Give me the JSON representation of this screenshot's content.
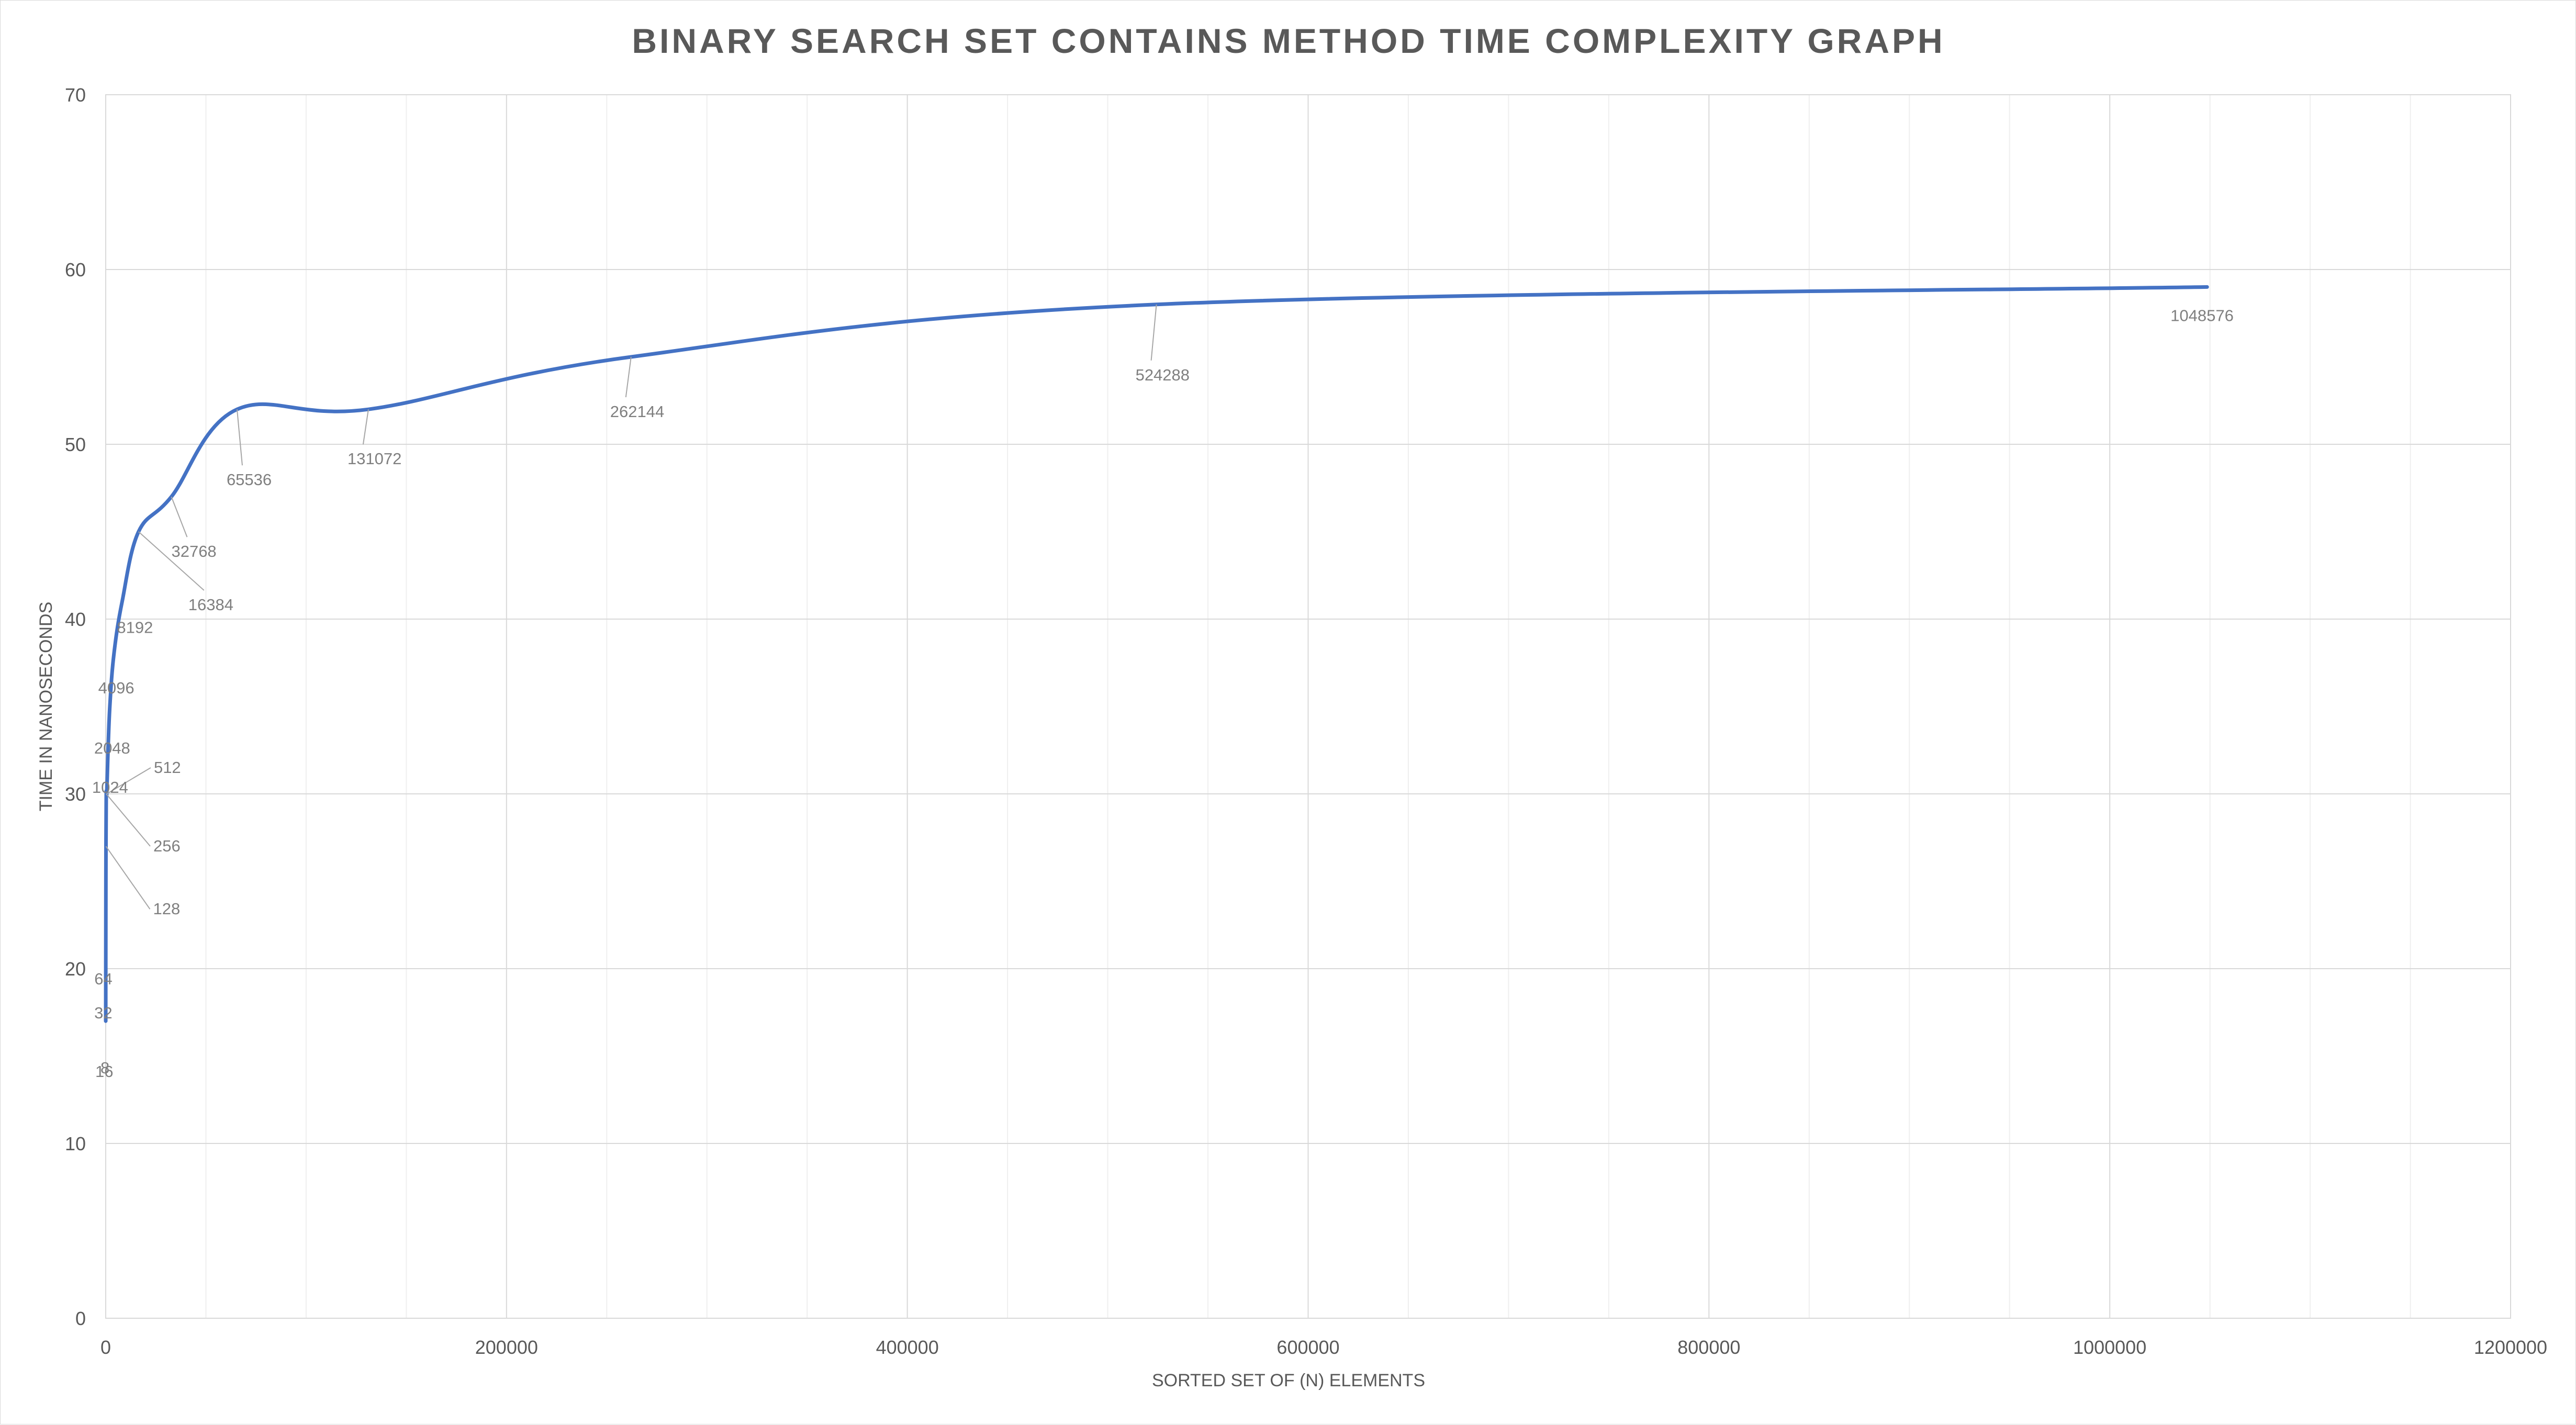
{
  "chart_data": {
    "type": "line",
    "title": "BINARY SEARCH SET CONTAINS METHOD TIME COMPLEXITY GRAPH",
    "xlabel": "SORTED SET OF (N) ELEMENTS",
    "ylabel": "TIME IN NANOSECONDS",
    "xlim": [
      0,
      1200000
    ],
    "ylim": [
      0,
      70
    ],
    "x_ticks": [
      "0",
      "200000",
      "400000",
      "600000",
      "800000",
      "1000000",
      "1200000"
    ],
    "y_ticks": [
      "0",
      "10",
      "20",
      "30",
      "40",
      "50",
      "60",
      "70"
    ],
    "grid": true,
    "smooth": true,
    "series": [
      {
        "color": "#4472c4",
        "points": [
          {
            "x": 8,
            "y": 17,
            "label": "8"
          },
          {
            "x": 16,
            "y": 18,
            "label": "16"
          },
          {
            "x": 32,
            "y": 20,
            "label": "32"
          },
          {
            "x": 64,
            "y": 23,
            "label": "64"
          },
          {
            "x": 128,
            "y": 27,
            "label": "128"
          },
          {
            "x": 256,
            "y": 30,
            "label": "256"
          },
          {
            "x": 512,
            "y": 30,
            "label": "512"
          },
          {
            "x": 1024,
            "y": 32,
            "label": "1024"
          },
          {
            "x": 2048,
            "y": 35,
            "label": "2048"
          },
          {
            "x": 4096,
            "y": 38,
            "label": "4096"
          },
          {
            "x": 8192,
            "y": 41,
            "label": "8192"
          },
          {
            "x": 16384,
            "y": 45,
            "label": "16384"
          },
          {
            "x": 32768,
            "y": 47,
            "label": "32768"
          },
          {
            "x": 65536,
            "y": 52,
            "label": "65536"
          },
          {
            "x": 131072,
            "y": 52,
            "label": "131072"
          },
          {
            "x": 262144,
            "y": 55,
            "label": "262144"
          },
          {
            "x": 524288,
            "y": 58,
            "label": "524288"
          },
          {
            "x": 1048576,
            "y": 59,
            "label": "1048576"
          }
        ]
      }
    ]
  }
}
